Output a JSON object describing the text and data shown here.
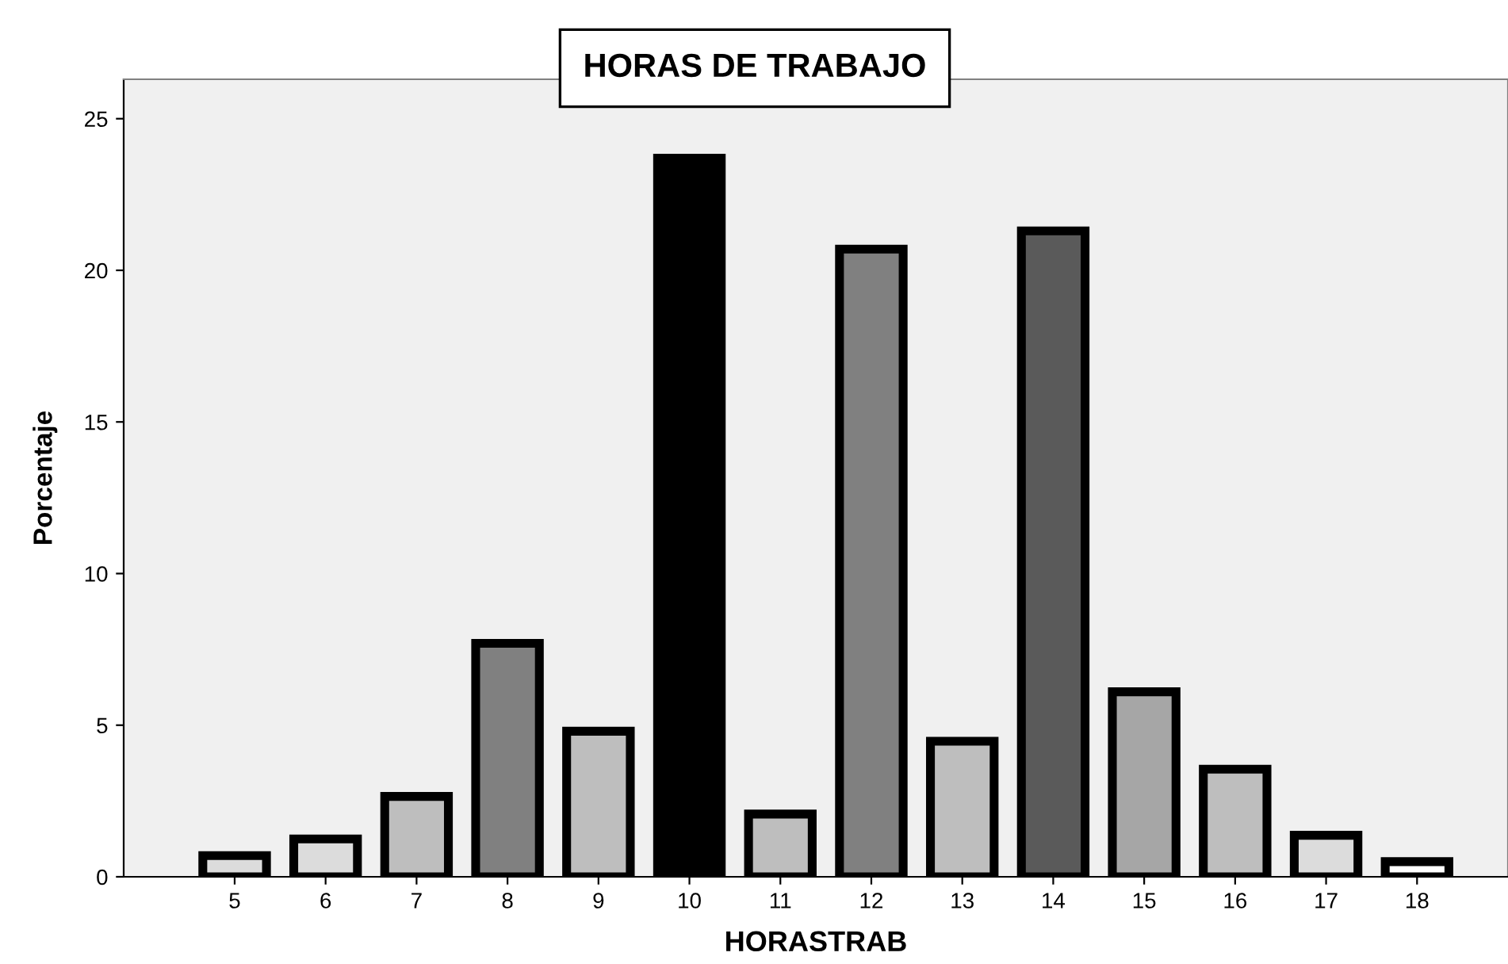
{
  "chart_data": {
    "type": "bar",
    "title": "HORAS DE TRABAJO",
    "xlabel": "HORASTRAB",
    "ylabel": "Porcentaje",
    "categories": [
      "5",
      "6",
      "7",
      "8",
      "9",
      "10",
      "11",
      "12",
      "13",
      "14",
      "15",
      "16",
      "17",
      "18"
    ],
    "values": [
      0.7,
      1.25,
      2.65,
      7.7,
      4.8,
      23.7,
      2.07,
      20.7,
      4.47,
      21.3,
      6.1,
      3.55,
      1.37,
      0.5
    ],
    "colors": [
      "#dcdcdc",
      "#dcdcdc",
      "#bebebe",
      "#808080",
      "#bebebe",
      "#000000",
      "#bebebe",
      "#808080",
      "#bebebe",
      "#5a5a5a",
      "#a6a6a6",
      "#bebebe",
      "#dcdcdc",
      "#ffffff"
    ],
    "ylim": [
      0,
      26.3
    ],
    "yticks": [
      0,
      5,
      10,
      15,
      20,
      25
    ],
    "grid": false
  }
}
